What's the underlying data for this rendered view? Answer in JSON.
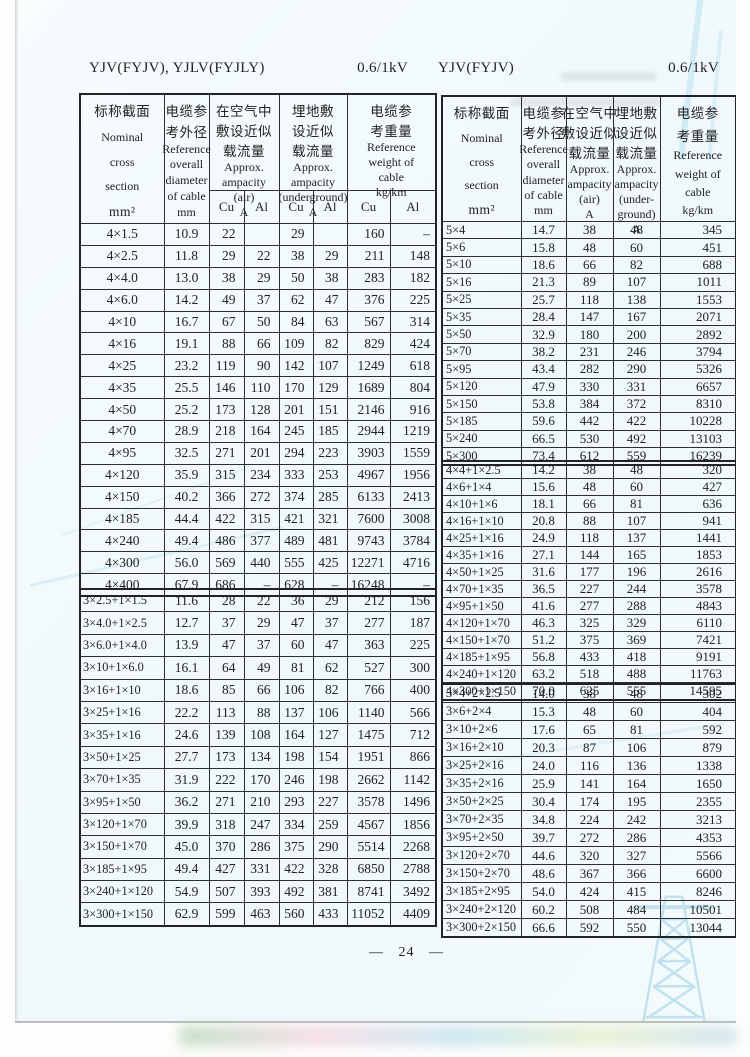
{
  "page": {
    "left_title": "YJV(FYJV), YJLV(FYJLY)",
    "left_voltage": "0.6/1kV",
    "right_title": "YJV(FYJV)",
    "right_voltage": "0.6/1kV",
    "page_number": "— 24 —",
    "decor": {
      "watermark_icon": "transmission-tower"
    }
  },
  "left_table": {
    "header": {
      "cross_section": [
        "标称截面",
        "Nominal",
        "cross",
        "section",
        "mm²"
      ],
      "diameter": [
        "电缆参",
        "考外径",
        "Reference",
        "overall",
        "diameter",
        "of cable",
        "mm"
      ],
      "ampacity_air": [
        "在空气中",
        "敷设近似",
        "载流量",
        "Approx.",
        "ampacity",
        "(air)",
        "A"
      ],
      "ampacity_underground": [
        "埋地敷",
        "设近似",
        "载流量",
        "Approx.",
        "ampacity",
        "(underground)",
        "A"
      ],
      "weight": [
        "电缆参",
        "考重量",
        "Reference",
        "weight of",
        "cable",
        "kg/km"
      ],
      "cu": "Cu",
      "al": "Al"
    },
    "sections": [
      {
        "rows": [
          [
            "4×1.5",
            "10.9",
            "22",
            "",
            "29",
            "",
            "160",
            "–"
          ],
          [
            "4×2.5",
            "11.8",
            "29",
            "22",
            "38",
            "29",
            "211",
            "148"
          ],
          [
            "4×4.0",
            "13.0",
            "38",
            "29",
            "50",
            "38",
            "283",
            "182"
          ],
          [
            "4×6.0",
            "14.2",
            "49",
            "37",
            "62",
            "47",
            "376",
            "225"
          ],
          [
            "4×10",
            "16.7",
            "67",
            "50",
            "84",
            "63",
            "567",
            "314"
          ],
          [
            "4×16",
            "19.1",
            "88",
            "66",
            "109",
            "82",
            "829",
            "424"
          ],
          [
            "4×25",
            "23.2",
            "119",
            "90",
            "142",
            "107",
            "1249",
            "618"
          ],
          [
            "4×35",
            "25.5",
            "146",
            "110",
            "170",
            "129",
            "1689",
            "804"
          ],
          [
            "4×50",
            "25.2",
            "173",
            "128",
            "201",
            "151",
            "2146",
            "916"
          ],
          [
            "4×70",
            "28.9",
            "218",
            "164",
            "245",
            "185",
            "2944",
            "1219"
          ],
          [
            "4×95",
            "32.5",
            "271",
            "201",
            "294",
            "223",
            "3903",
            "1559"
          ],
          [
            "4×120",
            "35.9",
            "315",
            "234",
            "333",
            "253",
            "4967",
            "1956"
          ],
          [
            "4×150",
            "40.2",
            "366",
            "272",
            "374",
            "285",
            "6133",
            "2413"
          ],
          [
            "4×185",
            "44.4",
            "422",
            "315",
            "421",
            "321",
            "7600",
            "3008"
          ],
          [
            "4×240",
            "49.4",
            "486",
            "377",
            "489",
            "481",
            "9743",
            "3784"
          ],
          [
            "4×300",
            "56.0",
            "569",
            "440",
            "555",
            "425",
            "12271",
            "4716"
          ],
          [
            "4×400",
            "67.9",
            "686",
            "–",
            "628",
            "–",
            "16248",
            "–"
          ]
        ]
      },
      {
        "rows": [
          [
            "3×2.5+1×1.5",
            "11.6",
            "28",
            "22",
            "36",
            "29",
            "212",
            "156"
          ],
          [
            "3×4.0+1×2.5",
            "12.7",
            "37",
            "29",
            "47",
            "37",
            "277",
            "187"
          ],
          [
            "3×6.0+1×4.0",
            "13.9",
            "47",
            "37",
            "60",
            "47",
            "363",
            "225"
          ],
          [
            "3×10+1×6.0",
            "16.1",
            "64",
            "49",
            "81",
            "62",
            "527",
            "300"
          ],
          [
            "3×16+1×10",
            "18.6",
            "85",
            "66",
            "106",
            "82",
            "766",
            "400"
          ],
          [
            "3×25+1×16",
            "22.2",
            "113",
            "88",
            "137",
            "106",
            "1140",
            "566"
          ],
          [
            "3×35+1×16",
            "24.6",
            "139",
            "108",
            "164",
            "127",
            "1475",
            "712"
          ],
          [
            "3×50+1×25",
            "27.7",
            "173",
            "134",
            "198",
            "154",
            "1951",
            "866"
          ],
          [
            "3×70+1×35",
            "31.9",
            "222",
            "170",
            "246",
            "198",
            "2662",
            "1142"
          ],
          [
            "3×95+1×50",
            "36.2",
            "271",
            "210",
            "293",
            "227",
            "3578",
            "1496"
          ],
          [
            "3×120+1×70",
            "39.9",
            "318",
            "247",
            "334",
            "259",
            "4567",
            "1856"
          ],
          [
            "3×150+1×70",
            "45.0",
            "370",
            "286",
            "375",
            "290",
            "5514",
            "2268"
          ],
          [
            "3×185+1×95",
            "49.4",
            "427",
            "331",
            "422",
            "328",
            "6850",
            "2788"
          ],
          [
            "3×240+1×120",
            "54.9",
            "507",
            "393",
            "492",
            "381",
            "8741",
            "3492"
          ],
          [
            "3×300+1×150",
            "62.9",
            "599",
            "463",
            "560",
            "433",
            "11052",
            "4409"
          ]
        ]
      }
    ]
  },
  "right_table": {
    "header": {
      "cross_section": [
        "标称截面",
        "Nominal",
        "cross",
        "section",
        "mm²"
      ],
      "diameter": [
        "电缆参",
        "考外径",
        "Reference",
        "overall",
        "diameter",
        "of cable",
        "mm"
      ],
      "ampacity_air": [
        "在空气中",
        "敷设近似",
        "载流量",
        "Approx.",
        "ampacity",
        "(air)",
        "A"
      ],
      "ampacity_underground": [
        "埋地敷",
        "设近似",
        "载流量",
        "Approx.",
        "ampacity",
        "(under-",
        "ground)",
        "A"
      ],
      "weight": [
        "电缆参",
        "考重量",
        "Reference",
        "weight of",
        "cable",
        "kg/km"
      ]
    },
    "sections": [
      {
        "rows": [
          [
            "5×4",
            "14.7",
            "38",
            "48",
            "345"
          ],
          [
            "5×6",
            "15.8",
            "48",
            "60",
            "451"
          ],
          [
            "5×10",
            "18.6",
            "66",
            "82",
            "688"
          ],
          [
            "5×16",
            "21.3",
            "89",
            "107",
            "1011"
          ],
          [
            "5×25",
            "25.7",
            "118",
            "138",
            "1553"
          ],
          [
            "5×35",
            "28.4",
            "147",
            "167",
            "2071"
          ],
          [
            "5×50",
            "32.9",
            "180",
            "200",
            "2892"
          ],
          [
            "5×70",
            "38.2",
            "231",
            "246",
            "3794"
          ],
          [
            "5×95",
            "43.4",
            "282",
            "290",
            "5326"
          ],
          [
            "5×120",
            "47.9",
            "330",
            "331",
            "6657"
          ],
          [
            "5×150",
            "53.8",
            "384",
            "372",
            "8310"
          ],
          [
            "5×185",
            "59.6",
            "442",
            "422",
            "10228"
          ],
          [
            "5×240",
            "66.5",
            "530",
            "492",
            "13103"
          ],
          [
            "5×300",
            "73.4",
            "612",
            "559",
            "16239"
          ]
        ]
      },
      {
        "rows": [
          [
            "4×4+1×2.5",
            "14.2",
            "38",
            "48",
            "320"
          ],
          [
            "4×6+1×4",
            "15.6",
            "48",
            "60",
            "427"
          ],
          [
            "4×10+1×6",
            "18.1",
            "66",
            "81",
            "636"
          ],
          [
            "4×16+1×10",
            "20.8",
            "88",
            "107",
            "941"
          ],
          [
            "4×25+1×16",
            "24.9",
            "118",
            "137",
            "1441"
          ],
          [
            "4×35+1×16",
            "27.1",
            "144",
            "165",
            "1853"
          ],
          [
            "4×50+1×25",
            "31.6",
            "177",
            "196",
            "2616"
          ],
          [
            "4×70+1×35",
            "36.5",
            "227",
            "244",
            "3578"
          ],
          [
            "4×95+1×50",
            "41.6",
            "277",
            "288",
            "4843"
          ],
          [
            "4×120+1×70",
            "46.3",
            "325",
            "329",
            "6110"
          ],
          [
            "4×150+1×70",
            "51.2",
            "375",
            "369",
            "7421"
          ],
          [
            "4×185+1×95",
            "56.8",
            "433",
            "418",
            "9191"
          ],
          [
            "4×240+1×120",
            "63.2",
            "518",
            "488",
            "11763"
          ],
          [
            "4×300+1×150",
            "70.0",
            "625",
            "555",
            "14595"
          ]
        ]
      },
      {
        "rows": [
          [
            "3×4+2×2.5",
            "14.0",
            "38",
            "48",
            "302"
          ],
          [
            "3×6+2×4",
            "15.3",
            "48",
            "60",
            "404"
          ],
          [
            "3×10+2×6",
            "17.6",
            "65",
            "81",
            "592"
          ],
          [
            "3×16+2×10",
            "20.3",
            "87",
            "106",
            "879"
          ],
          [
            "3×25+2×16",
            "24.0",
            "116",
            "136",
            "1338"
          ],
          [
            "3×35+2×16",
            "25.9",
            "141",
            "164",
            "1650"
          ],
          [
            "3×50+2×25",
            "30.4",
            "174",
            "195",
            "2355"
          ],
          [
            "3×70+2×35",
            "34.8",
            "224",
            "242",
            "3213"
          ],
          [
            "3×95+2×50",
            "39.7",
            "272",
            "286",
            "4353"
          ],
          [
            "3×120+2×70",
            "44.6",
            "320",
            "327",
            "5566"
          ],
          [
            "3×150+2×70",
            "48.6",
            "367",
            "366",
            "6600"
          ],
          [
            "3×185+2×95",
            "54.0",
            "424",
            "415",
            "8246"
          ],
          [
            "3×240+2×120",
            "60.2",
            "508",
            "484",
            "10501"
          ],
          [
            "3×300+2×150",
            "66.6",
            "592",
            "550",
            "13044"
          ]
        ]
      }
    ]
  }
}
